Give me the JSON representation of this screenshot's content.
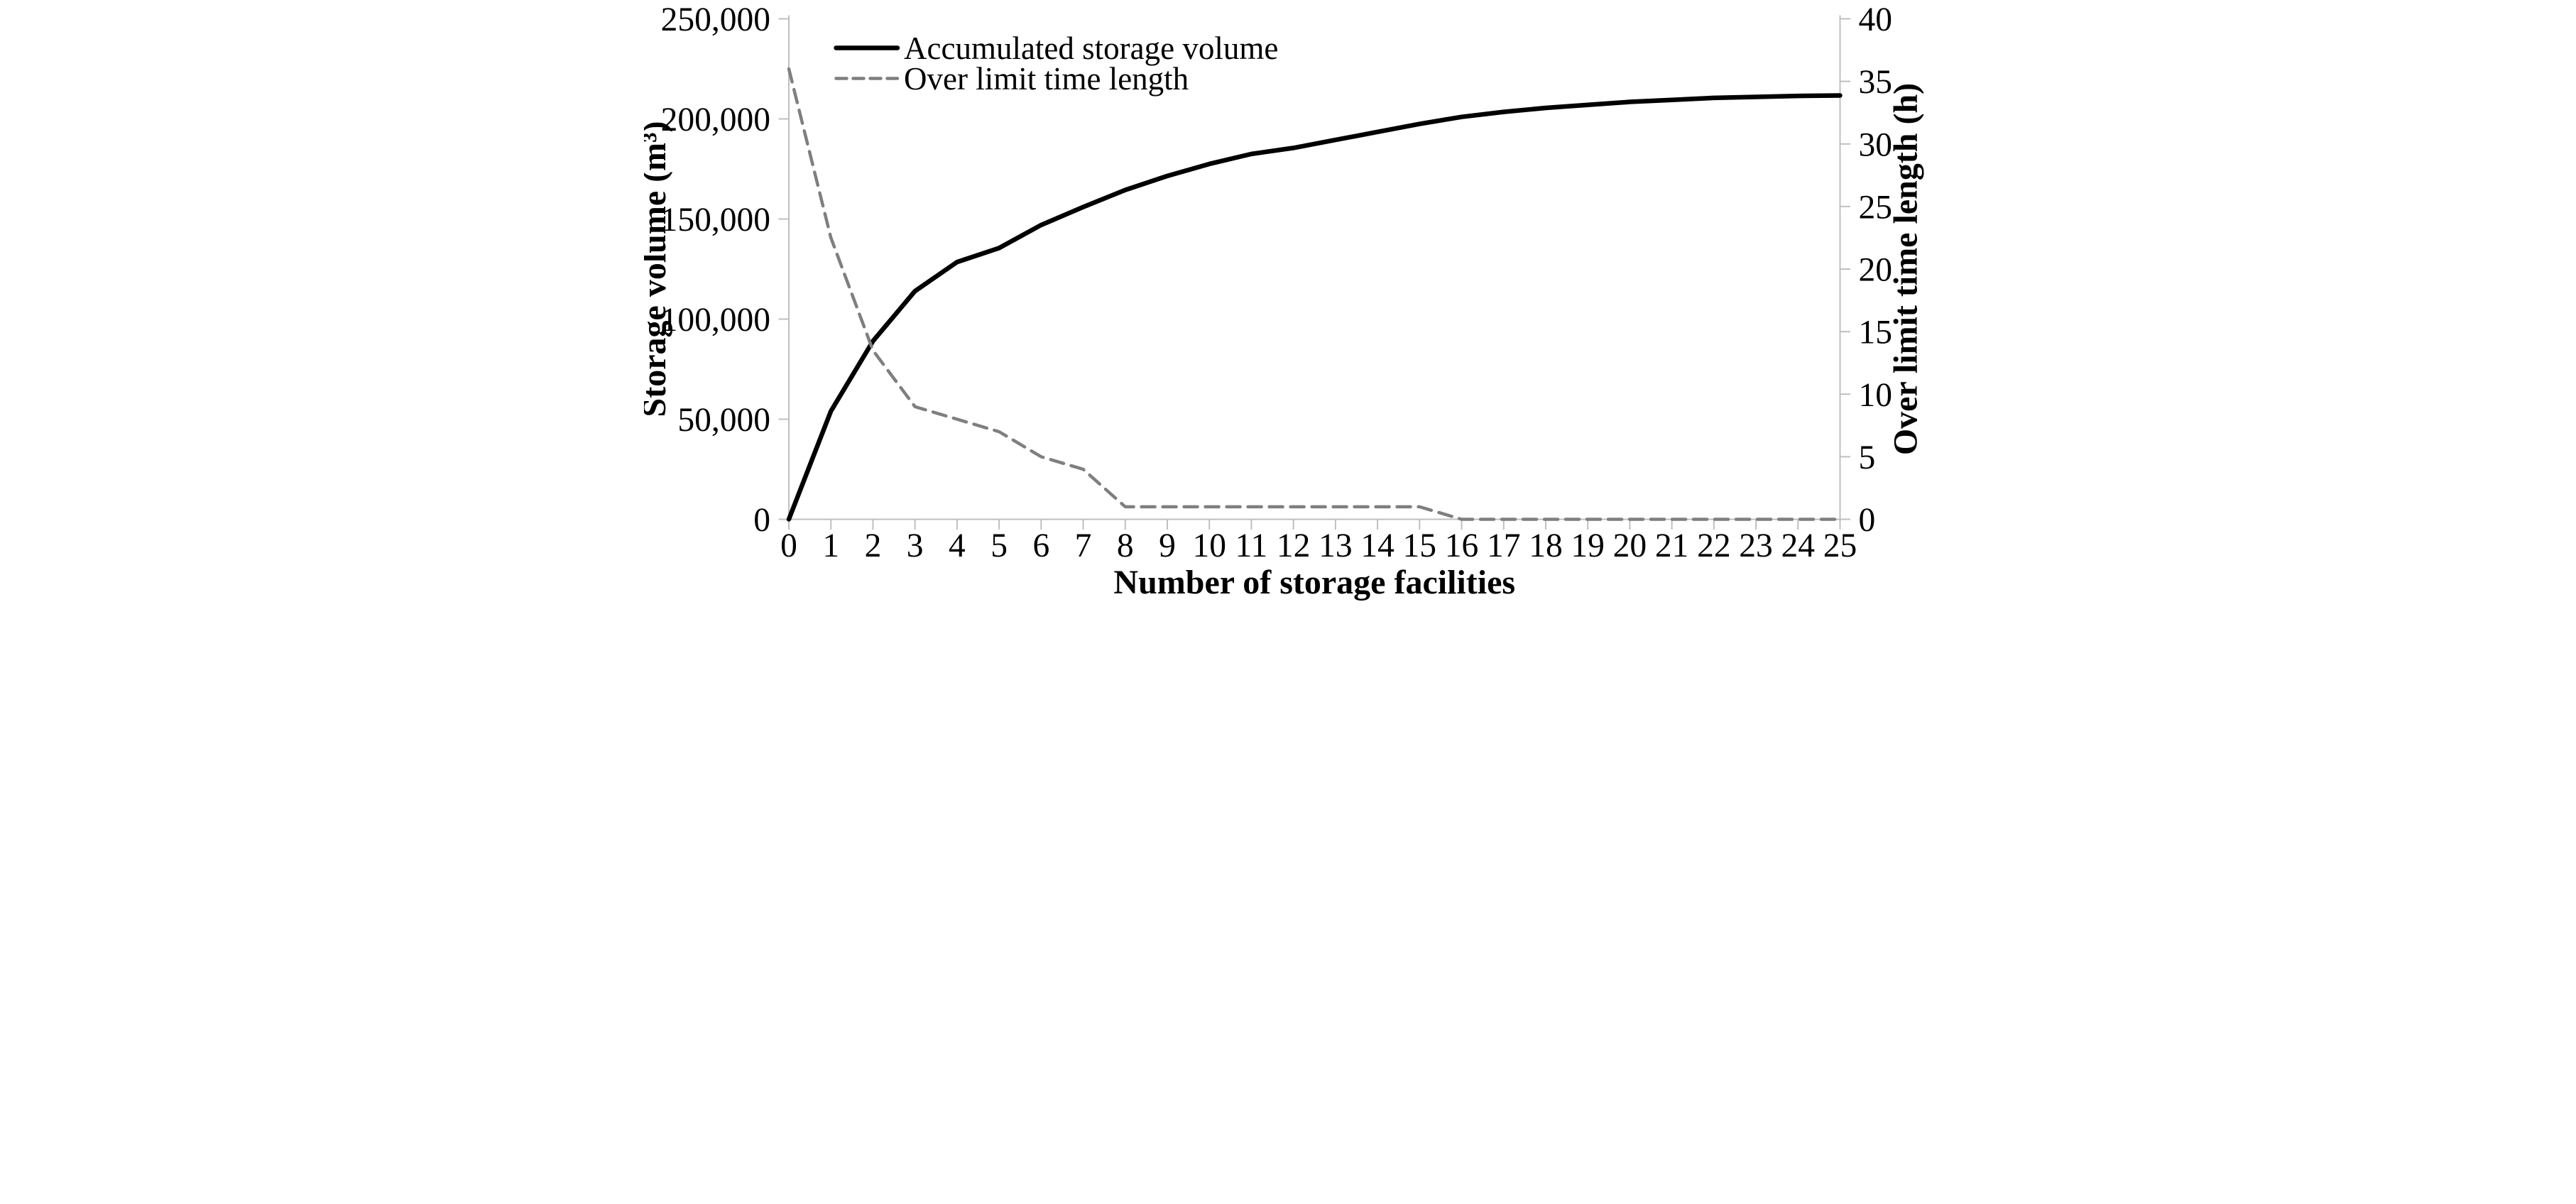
{
  "chart_data": {
    "type": "line",
    "title": "",
    "grid": false,
    "background_color": "#ffffff",
    "axis_color": "#BFBFBF",
    "text_color": "#000000",
    "x": [
      0,
      1,
      2,
      3,
      4,
      5,
      6,
      7,
      8,
      9,
      10,
      11,
      12,
      13,
      14,
      15,
      16,
      17,
      18,
      19,
      20,
      21,
      22,
      23,
      24,
      25
    ],
    "x_axis": {
      "label": "Number of storage facilities",
      "tick_labels": [
        "0",
        "1",
        "2",
        "3",
        "4",
        "5",
        "6",
        "7",
        "8",
        "9",
        "10",
        "11",
        "12",
        "13",
        "14",
        "15",
        "16",
        "17",
        "18",
        "19",
        "20",
        "21",
        "22",
        "23",
        "24",
        "25"
      ]
    },
    "y_left": {
      "label": "Storage volume (m³)",
      "min": 0,
      "max": 250000,
      "tick_step": 50000,
      "tick_labels": [
        "0",
        "50,000",
        "100,000",
        "150,000",
        "200,000",
        "250,000"
      ]
    },
    "y_right": {
      "label": "Over limit time length (h)",
      "min": 0,
      "max": 40,
      "tick_step": 5,
      "tick_labels": [
        "0",
        "5",
        "10",
        "15",
        "20",
        "25",
        "30",
        "35",
        "40"
      ]
    },
    "legend": {
      "position": "top-left-inside",
      "entries": [
        {
          "label": "Accumulated storage volume",
          "style": "solid",
          "color": "#000000"
        },
        {
          "label": "Over limit time length",
          "style": "dashed",
          "color": "#7F7F7F"
        }
      ]
    },
    "series": [
      {
        "name": "Accumulated storage volume",
        "axis": "left",
        "style": "solid",
        "color": "#000000",
        "values": [
          0,
          54000,
          89000,
          114000,
          128500,
          135500,
          147000,
          156000,
          164500,
          171500,
          177500,
          182500,
          185500,
          189500,
          193500,
          197500,
          201000,
          203500,
          205500,
          207000,
          208500,
          209500,
          210500,
          211000,
          211500,
          211700
        ]
      },
      {
        "name": "Over limit time length",
        "axis": "right",
        "style": "dashed",
        "color": "#7F7F7F",
        "values": [
          36,
          22.5,
          13.5,
          9,
          8,
          7,
          5,
          4,
          1,
          1,
          1,
          1,
          1,
          1,
          1,
          1,
          0,
          0,
          0,
          0,
          0,
          0,
          0,
          0,
          0,
          0
        ]
      }
    ]
  }
}
